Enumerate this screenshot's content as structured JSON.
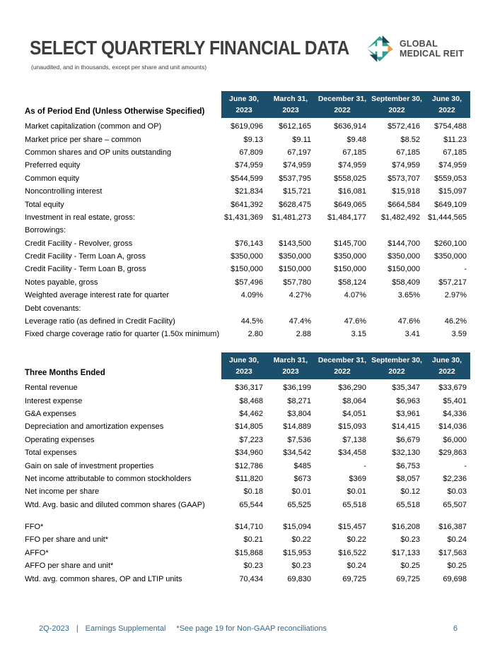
{
  "header": {
    "title": "SELECT QUARTERLY FINANCIAL DATA",
    "subtitle": "(unaudited, and in thousands, except per share and unit amounts)"
  },
  "logo": {
    "line1": "GLOBAL",
    "line2": "MEDICAL REIT"
  },
  "colors": {
    "table_header_bar": "#1c4f6c",
    "logo_teal": "#2fa091",
    "logo_navy": "#1d4356",
    "logo_orange": "#f09a38",
    "footer_text": "#34688a",
    "title_text": "#3e3e3e"
  },
  "columns": [
    {
      "line1": "June 30,",
      "line2": "2023"
    },
    {
      "line1": "March 31,",
      "line2": "2023"
    },
    {
      "line1": "December 31,",
      "line2": "2022"
    },
    {
      "line1": "September 30,",
      "line2": "2022"
    },
    {
      "line1": "June 30,",
      "line2": "2022"
    }
  ],
  "table1": {
    "label_header": "As of Period End (Unless Otherwise Specified)",
    "rows": [
      {
        "label": "Market capitalization (common and OP)",
        "values": [
          "$619,096",
          "$612,165",
          "$636,914",
          "$572,416",
          "$754,488"
        ]
      },
      {
        "label": "Market price per share – common",
        "values": [
          "$9.13",
          "$9.11",
          "$9.48",
          "$8.52",
          "$11.23"
        ]
      },
      {
        "label": "Common shares and OP units outstanding",
        "values": [
          "67,809",
          "67,197",
          "67,185",
          "67,185",
          "67,185"
        ]
      },
      {
        "label": "Preferred equity",
        "values": [
          "$74,959",
          "$74,959",
          "$74,959",
          "$74,959",
          "$74,959"
        ]
      },
      {
        "label": "Common equity",
        "values": [
          "$544,599",
          "$537,795",
          "$558,025",
          "$573,707",
          "$559,053"
        ]
      },
      {
        "label": "Noncontrolling interest",
        "values": [
          "$21,834",
          "$15,721",
          "$16,081",
          "$15,918",
          "$15,097"
        ]
      },
      {
        "label": "Total equity",
        "values": [
          "$641,392",
          "$628,475",
          "$649,065",
          "$664,584",
          "$649,109"
        ]
      },
      {
        "label": "Investment in real estate, gross:",
        "values": [
          "$1,431,369",
          "$1,481,273",
          "$1,484,177",
          "$1,482,492",
          "$1,444,565"
        ]
      },
      {
        "label": "Borrowings:"
      },
      {
        "label": "Credit Facility - Revolver, gross",
        "values": [
          "$76,143",
          "$143,500",
          "$145,700",
          "$144,700",
          "$260,100"
        ]
      },
      {
        "label": "Credit Facility - Term Loan A, gross",
        "values": [
          "$350,000",
          "$350,000",
          "$350,000",
          "$350,000",
          "$350,000"
        ]
      },
      {
        "label": "Credit Facility - Term Loan B, gross",
        "values": [
          "$150,000",
          "$150,000",
          "$150,000",
          "$150,000",
          "-"
        ]
      },
      {
        "label": "Notes payable, gross",
        "values": [
          "$57,496",
          "$57,780",
          "$58,124",
          "$58,409",
          "$57,217"
        ]
      },
      {
        "label": "Weighted average interest rate for quarter",
        "values": [
          "4.09%",
          "4.27%",
          "4.07%",
          "3.65%",
          "2.97%"
        ]
      },
      {
        "label": "Debt covenants:"
      },
      {
        "label": "Leverage ratio (as defined in Credit Facility)",
        "values": [
          "44.5%",
          "47.4%",
          "47.6%",
          "47.6%",
          "46.2%"
        ]
      },
      {
        "label": "Fixed charge coverage ratio for quarter (1.50x minimum)",
        "values": [
          "2.80",
          "2.88",
          "3.15",
          "3.41",
          "3.59"
        ]
      }
    ]
  },
  "table2": {
    "label_header": "Three Months Ended",
    "rows": [
      {
        "label": "Rental revenue",
        "values": [
          "$36,317",
          "$36,199",
          "$36,290",
          "$35,347",
          "$33,679"
        ]
      },
      {
        "label": "Interest expense",
        "values": [
          "$8,468",
          "$8,271",
          "$8,064",
          "$6,963",
          "$5,401"
        ]
      },
      {
        "label": "G&A expenses",
        "values": [
          "$4,462",
          "$3,804",
          "$4,051",
          "$3,961",
          "$4,336"
        ]
      },
      {
        "label": "Depreciation and amortization expenses",
        "values": [
          "$14,805",
          "$14,889",
          "$15,093",
          "$14,415",
          "$14,036"
        ]
      },
      {
        "label": "Operating expenses",
        "values": [
          "$7,223",
          "$7,536",
          "$7,138",
          "$6,679",
          "$6,000"
        ]
      },
      {
        "label": "Total expenses",
        "values": [
          "$34,960",
          "$34,542",
          "$34,458",
          "$32,130",
          "$29,863"
        ]
      },
      {
        "label": "Gain on sale of investment properties",
        "values": [
          "$12,786",
          "$485",
          "-",
          "$6,753",
          "-"
        ]
      },
      {
        "label": "Net income attributable to common stockholders",
        "values": [
          "$11,820",
          "$673",
          "$369",
          "$8,057",
          "$2,236"
        ]
      },
      {
        "label": "Net income per share",
        "values": [
          "$0.18",
          "$0.01",
          "$0.01",
          "$0.12",
          "$0.03"
        ]
      },
      {
        "label": "Wtd. Avg. basic and diluted common shares (GAAP)",
        "values": [
          "65,544",
          "65,525",
          "65,518",
          "65,518",
          "65,507"
        ]
      },
      {
        "label": "FFO*",
        "gap_before": true,
        "values": [
          "$14,710",
          "$15,094",
          "$15,457",
          "$16,208",
          "$16,387"
        ]
      },
      {
        "label": "FFO per share and unit*",
        "values": [
          "$0.21",
          "$0.22",
          "$0.22",
          "$0.23",
          "$0.24"
        ]
      },
      {
        "label": "AFFO*",
        "values": [
          "$15,868",
          "$15,953",
          "$16,522",
          "$17,133",
          "$17,563"
        ]
      },
      {
        "label": "AFFO per share and unit*",
        "values": [
          "$0.23",
          "$0.23",
          "$0.24",
          "$0.25",
          "$0.25"
        ]
      },
      {
        "label": "Wtd. avg. common shares, OP and LTIP units",
        "values": [
          "70,434",
          "69,830",
          "69,725",
          "69,725",
          "69,698"
        ]
      }
    ]
  },
  "footer": {
    "quarter": "2Q-2023",
    "divider": "|",
    "label": "Earnings Supplemental",
    "note": "*See page 19 for Non-GAAP reconciliations",
    "page_number": "6"
  }
}
